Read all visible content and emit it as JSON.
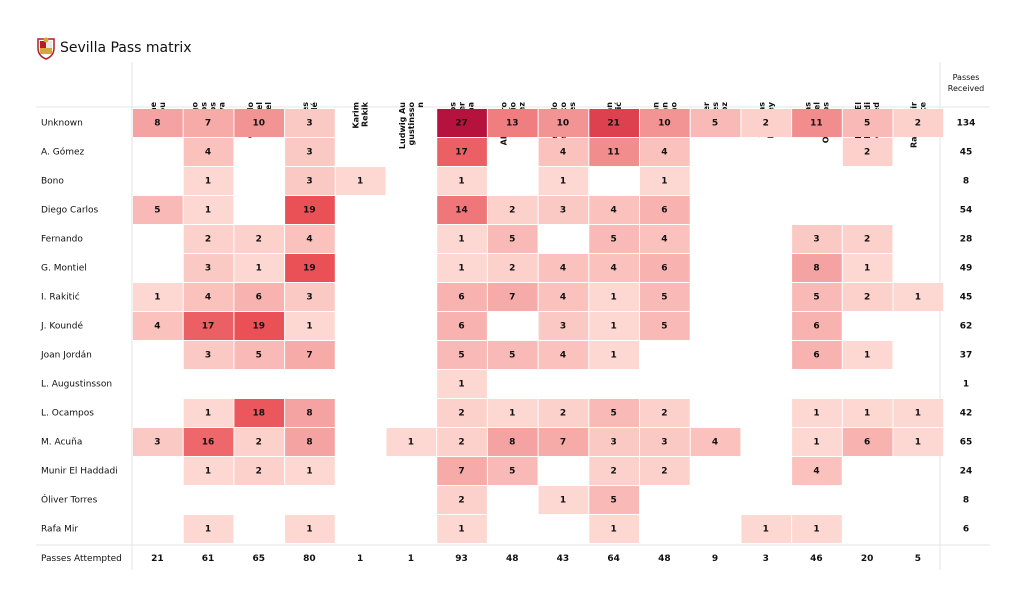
{
  "header": {
    "title": "Sevilla Pass matrix",
    "crest_icon": "sevilla-crest-icon"
  },
  "chart_data": {
    "type": "heatmap",
    "title": "Sevilla Pass matrix",
    "columns": [
      "Yassine\nBounou",
      "Diego\nCarlos\nSantos\nSilva",
      "Gonzalo\nAriel\nMontiel",
      "Jules\nKoundé",
      "Karim\nRekik",
      "Ludwig Au\ngustinsso\nn",
      "Marcos\nJavier\nAcuña",
      "Alejandro\nDarío\nGómez",
      "Fernando\nFrancisco\nReges",
      "Ivan\nRakitić",
      "Joan\nJordán\nMoreno",
      "Óliver\nTorres\nMuñoz",
      "Thomas\nDelaney",
      "Lucas\nAriel\nOcampos",
      "Munir El\nHaddadi\nMohamed",
      "Rafael Mir\nVicente"
    ],
    "rows": [
      "Unknown",
      "A. Gómez",
      "Bono",
      "Diego Carlos",
      "Fernando",
      "G. Montiel",
      "I. Rakitić",
      "J. Koundé",
      "Joan Jordán",
      "L. Augustinsson",
      "L. Ocampos",
      "M. Acuña",
      "Munir El Haddadi",
      "Óliver Torres",
      "Rafa Mir"
    ],
    "values": [
      [
        8,
        7,
        10,
        3,
        null,
        null,
        27,
        13,
        10,
        21,
        10,
        5,
        2,
        11,
        5,
        2
      ],
      [
        null,
        4,
        null,
        3,
        null,
        null,
        17,
        null,
        4,
        11,
        4,
        null,
        null,
        null,
        2,
        null
      ],
      [
        null,
        1,
        null,
        3,
        1,
        null,
        1,
        null,
        1,
        null,
        1,
        null,
        null,
        null,
        null,
        null
      ],
      [
        5,
        1,
        null,
        19,
        null,
        null,
        14,
        2,
        3,
        4,
        6,
        null,
        null,
        null,
        null,
        null
      ],
      [
        null,
        2,
        2,
        4,
        null,
        null,
        1,
        5,
        null,
        5,
        4,
        null,
        null,
        3,
        2,
        null
      ],
      [
        null,
        3,
        1,
        19,
        null,
        null,
        1,
        2,
        4,
        4,
        6,
        null,
        null,
        8,
        1,
        null
      ],
      [
        1,
        4,
        6,
        3,
        null,
        null,
        6,
        7,
        4,
        1,
        5,
        null,
        null,
        5,
        2,
        1
      ],
      [
        4,
        17,
        19,
        1,
        null,
        null,
        6,
        null,
        3,
        1,
        5,
        null,
        null,
        6,
        null,
        null
      ],
      [
        null,
        3,
        5,
        7,
        null,
        null,
        5,
        5,
        4,
        1,
        null,
        null,
        null,
        6,
        1,
        null
      ],
      [
        null,
        null,
        null,
        null,
        null,
        null,
        1,
        null,
        null,
        null,
        null,
        null,
        null,
        null,
        null,
        null
      ],
      [
        null,
        1,
        18,
        8,
        null,
        null,
        2,
        1,
        2,
        5,
        2,
        null,
        null,
        1,
        1,
        1
      ],
      [
        3,
        16,
        2,
        8,
        null,
        1,
        2,
        8,
        7,
        3,
        3,
        4,
        null,
        1,
        6,
        1
      ],
      [
        null,
        1,
        2,
        1,
        null,
        null,
        7,
        5,
        null,
        2,
        2,
        null,
        null,
        4,
        null,
        null
      ],
      [
        null,
        null,
        null,
        null,
        null,
        null,
        2,
        null,
        1,
        5,
        null,
        null,
        null,
        null,
        null,
        null
      ],
      [
        null,
        1,
        null,
        1,
        null,
        null,
        1,
        null,
        null,
        1,
        null,
        null,
        1,
        1,
        null,
        null
      ]
    ],
    "passes_received_label": "Passes\nReceived",
    "passes_received": [
      134,
      45,
      8,
      54,
      28,
      49,
      45,
      62,
      37,
      1,
      42,
      65,
      24,
      8,
      6
    ],
    "passes_attempted_label": "Passes Attempted",
    "passes_attempted": [
      21,
      61,
      65,
      80,
      1,
      1,
      93,
      48,
      43,
      64,
      48,
      9,
      3,
      46,
      20,
      5
    ],
    "color_scale": {
      "min": 1,
      "max": 27,
      "low_color": "#fdd8d2",
      "mid_color": "#e94f55",
      "high_color": "#b5123e"
    }
  }
}
